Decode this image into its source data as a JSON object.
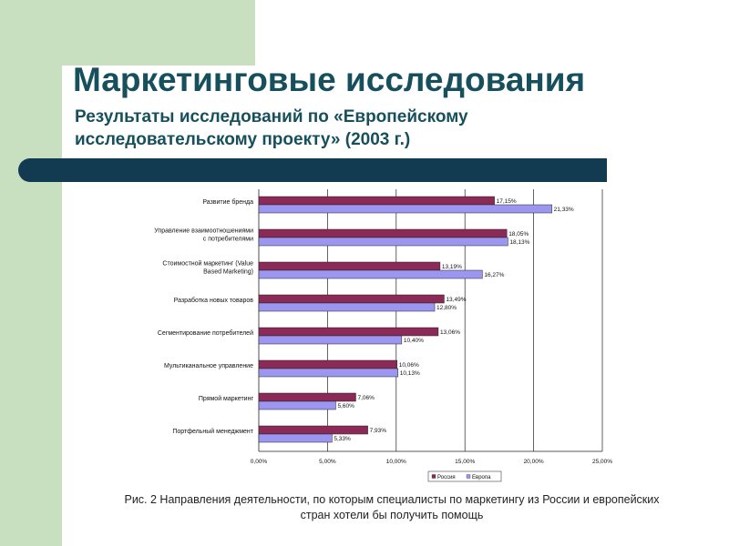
{
  "slide": {
    "title": "Маркетинговые исследования",
    "subtitle_line1": "Результаты исследований по «Европейскому",
    "subtitle_line2": "исследовательскому проекту» (2003 г.)",
    "caption_line1": "Рис. 2 Направления деятельности, по которым специалисты по маркетингу из России и европейских",
    "caption_line2": "стран хотели бы получить помощь"
  },
  "colors": {
    "russia": "#8b2a56",
    "europe": "#9b96f0",
    "title": "#17505c",
    "accent_bar": "#123b52",
    "green": "#c8e0bf"
  },
  "chart_data": {
    "type": "bar",
    "orientation": "horizontal",
    "categories": [
      [
        "Развитие бренда"
      ],
      [
        "Управление взаимоотношениями",
        "с потребителями"
      ],
      [
        "Стоимостной маркетинг (Value",
        "Based Marketing)"
      ],
      [
        "Разработка новых товаров"
      ],
      [
        "Сегментирование потребителей"
      ],
      [
        "Мультиканальное управление"
      ],
      [
        "Прямой маркетинг"
      ],
      [
        "Портфельный менеджмент"
      ]
    ],
    "series": [
      {
        "name": "Россия",
        "values": [
          17.15,
          18.05,
          13.19,
          13.49,
          13.06,
          10.06,
          7.06,
          7.93
        ],
        "labels": [
          "17,15%",
          "18,05%",
          "13,19%",
          "13,49%",
          "13,06%",
          "10,06%",
          "7,06%",
          "7,93%"
        ]
      },
      {
        "name": "Европа",
        "values": [
          21.33,
          18.13,
          16.27,
          12.8,
          10.4,
          10.13,
          5.6,
          5.33
        ],
        "labels": [
          "21,33%",
          "18,13%",
          "16,27%",
          "12,80%",
          "10,40%",
          "10,13%",
          "5,60%",
          "5,33%"
        ]
      }
    ],
    "xlim": [
      0,
      25
    ],
    "ticks": [
      0,
      5,
      10,
      15,
      20,
      25
    ],
    "tick_labels": [
      "0,00%",
      "5,00%",
      "10,00%",
      "15,00%",
      "20,00%",
      "25,00%"
    ],
    "grid": true,
    "legend_position": "bottom"
  }
}
